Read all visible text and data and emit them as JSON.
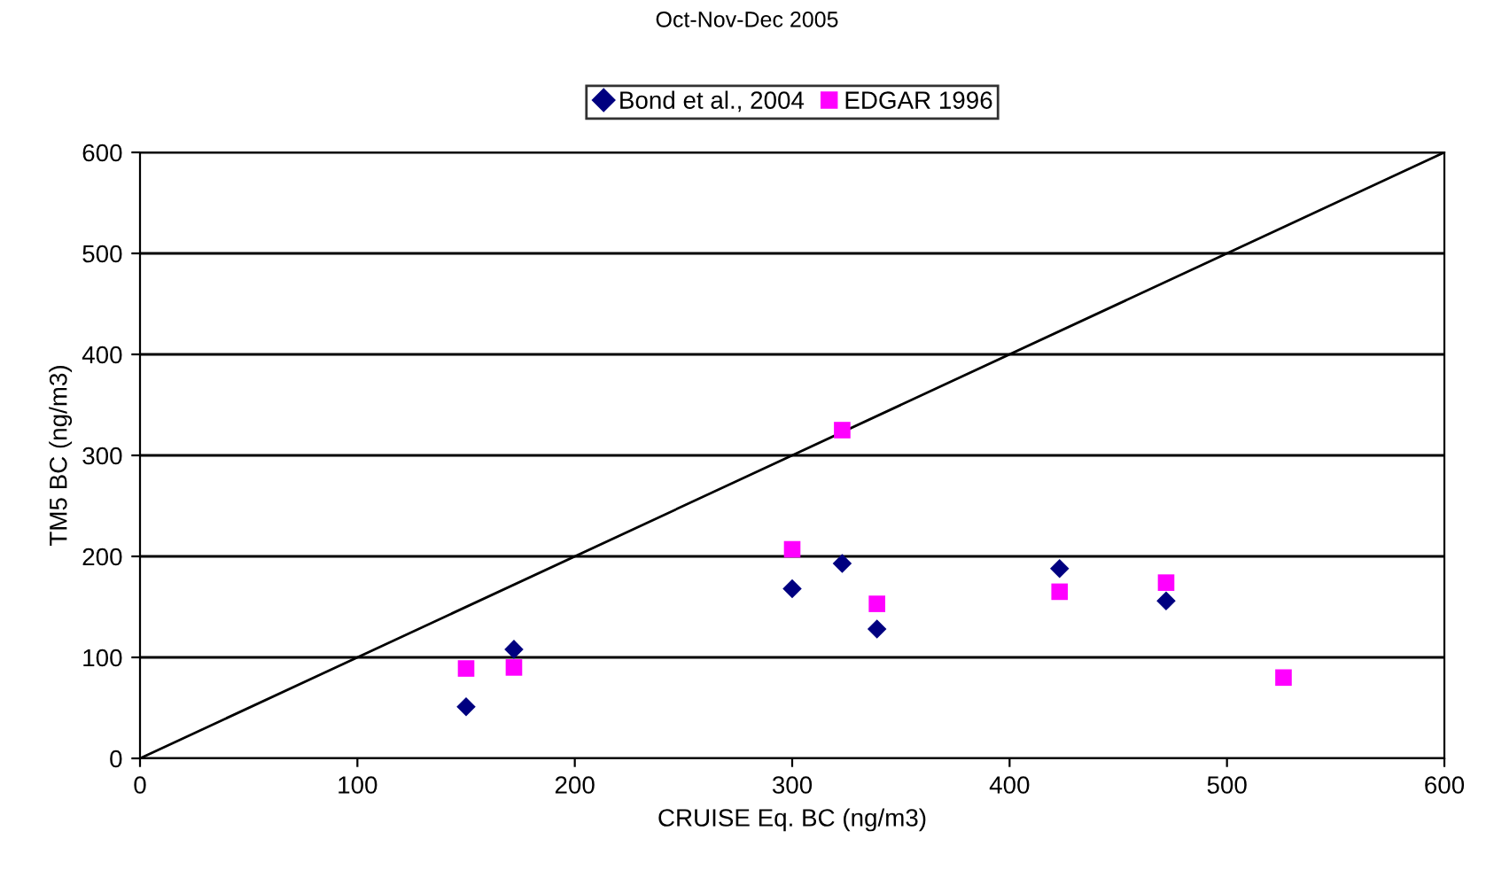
{
  "chart_data": {
    "type": "scatter",
    "title": "Oct-Nov-Dec 2005",
    "xlabel": "CRUISE Eq. BC (ng/m3)",
    "ylabel": "TM5 BC (ng/m3)",
    "xlim": [
      0,
      600
    ],
    "xticks": [
      0,
      100,
      200,
      300,
      400,
      500,
      600
    ],
    "ylim": [
      0,
      600
    ],
    "yticks": [
      0,
      100,
      200,
      300,
      400,
      500,
      600
    ],
    "grid": "y",
    "legend": "top",
    "series": [
      {
        "name": "Bond et al., 2004",
        "color": "#000080",
        "marker": "diamond",
        "x": [
          150,
          172,
          300,
          323,
          339,
          423,
          472
        ],
        "values": [
          51,
          108,
          168,
          193,
          128,
          188,
          156
        ]
      },
      {
        "name": "EDGAR 1996",
        "color": "#ff00ff",
        "marker": "square",
        "x": [
          150,
          172,
          300,
          323,
          339,
          423,
          472,
          526
        ],
        "values": [
          89,
          90,
          207,
          325,
          153,
          165,
          174,
          80
        ]
      },
      {
        "type": "line",
        "color": "#000000",
        "marker": "none",
        "x": [
          0,
          600
        ],
        "values": [
          0,
          600
        ]
      }
    ]
  }
}
